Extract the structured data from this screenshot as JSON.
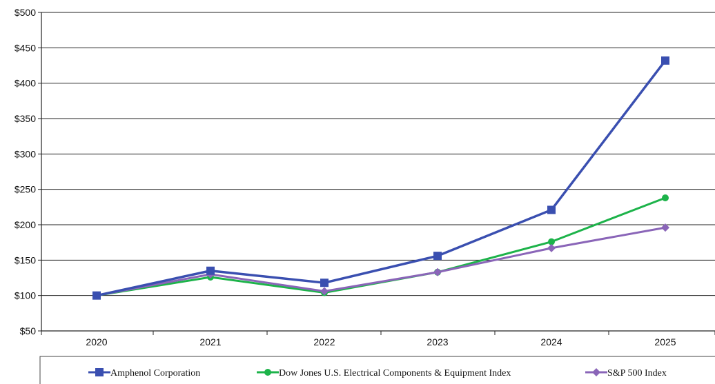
{
  "chart_data": {
    "type": "line",
    "title": "",
    "xlabel": "",
    "ylabel": "",
    "x": [
      "2020",
      "2021",
      "2022",
      "2023",
      "2024",
      "2025"
    ],
    "ylim": [
      50,
      500
    ],
    "yticks": [
      "$50",
      "$100",
      "$150",
      "$200",
      "$250",
      "$300",
      "$350",
      "$400",
      "$450",
      "$500"
    ],
    "ytick_values": [
      50,
      100,
      150,
      200,
      250,
      300,
      350,
      400,
      450,
      500
    ],
    "grid": "horizontal",
    "legend_position": "bottom",
    "series": [
      {
        "name": "Amphenol Corporation",
        "values": [
          100,
          135,
          118,
          156,
          221,
          432
        ],
        "color": "#3a4fb0",
        "marker": "square"
      },
      {
        "name": "Dow Jones U.S. Electrical Components & Equipment Index",
        "values": [
          100,
          126,
          104,
          133,
          176,
          238
        ],
        "color": "#1db34a",
        "marker": "circle"
      },
      {
        "name": "S&P 500 Index",
        "values": [
          100,
          130,
          106,
          133,
          167,
          196
        ],
        "color": "#8a65b8",
        "marker": "diamond"
      }
    ]
  }
}
